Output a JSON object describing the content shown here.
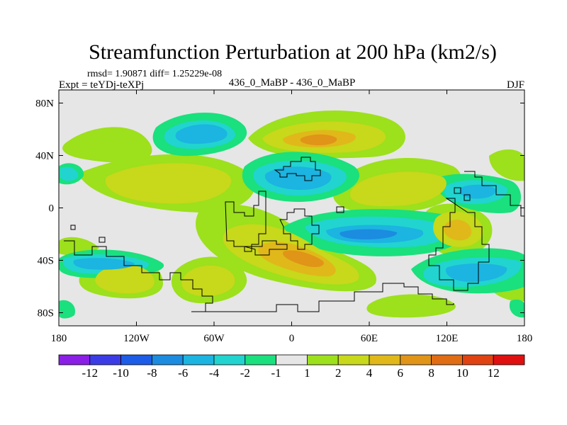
{
  "chart_data": {
    "type": "filled-contour-map",
    "title": "Streamfunction Perturbation at 200 hPa (km2/s)",
    "stats_line": "rmsd= 1.90871 diff= 1.25229e-08",
    "left_label": "Expt = teYDj-teXPj",
    "center_label": "436_0_MaBP - 436_0_MaBP",
    "right_label": "DJF",
    "x_axis": {
      "range": [
        -180,
        180
      ],
      "ticks": [
        {
          "value": -180,
          "label": "180"
        },
        {
          "value": -120,
          "label": "120W"
        },
        {
          "value": -60,
          "label": "60W"
        },
        {
          "value": 0,
          "label": "0"
        },
        {
          "value": 60,
          "label": "60E"
        },
        {
          "value": 120,
          "label": "120E"
        },
        {
          "value": 180,
          "label": "180"
        }
      ]
    },
    "y_axis": {
      "range": [
        -90,
        90
      ],
      "ticks": [
        {
          "value": 80,
          "label": "80N"
        },
        {
          "value": 40,
          "label": "40N"
        },
        {
          "value": 0,
          "label": "0"
        },
        {
          "value": -40,
          "label": "40S"
        },
        {
          "value": -80,
          "label": "80S"
        }
      ]
    },
    "colorbar": {
      "labels": [
        "-12",
        "-10",
        "-8",
        "-6",
        "-4",
        "-2",
        "-1",
        "1",
        "2",
        "4",
        "6",
        "8",
        "10",
        "12"
      ],
      "colors": [
        "#8c1fe6",
        "#3c3ce6",
        "#1c5ce6",
        "#1b8ce0",
        "#1cb4e0",
        "#21d4d0",
        "#1ae07e",
        "#e6e6e6",
        "#9de01c",
        "#c8d81a",
        "#e0b81a",
        "#e09418",
        "#e06c14",
        "#e04212",
        "#e01010"
      ]
    },
    "fields": [
      {
        "name": "negative-cell",
        "lon": -40,
        "lat": 62,
        "value": -4
      },
      {
        "name": "negative-cell",
        "lon": 20,
        "lat": 24,
        "value": -6
      },
      {
        "name": "positive-cell",
        "lon": 25,
        "lat": 52,
        "value": 6
      },
      {
        "name": "positive-cell",
        "lon": -80,
        "lat": 28,
        "value": 4
      },
      {
        "name": "positive-cell",
        "lon": 80,
        "lat": 18,
        "value": 4
      },
      {
        "name": "negative-cell",
        "lon": 55,
        "lat": -18,
        "value": -6
      },
      {
        "name": "positive-cell",
        "lon": 10,
        "lat": -42,
        "value": 6
      },
      {
        "name": "positive-cell",
        "lon": -135,
        "lat": -57,
        "value": 4
      },
      {
        "name": "positive-cell",
        "lon": -60,
        "lat": -58,
        "value": 4
      },
      {
        "name": "positive-cell",
        "lon": 125,
        "lat": -18,
        "value": 4
      },
      {
        "name": "negative-cell",
        "lon": 155,
        "lat": -52,
        "value": -6
      }
    ]
  }
}
